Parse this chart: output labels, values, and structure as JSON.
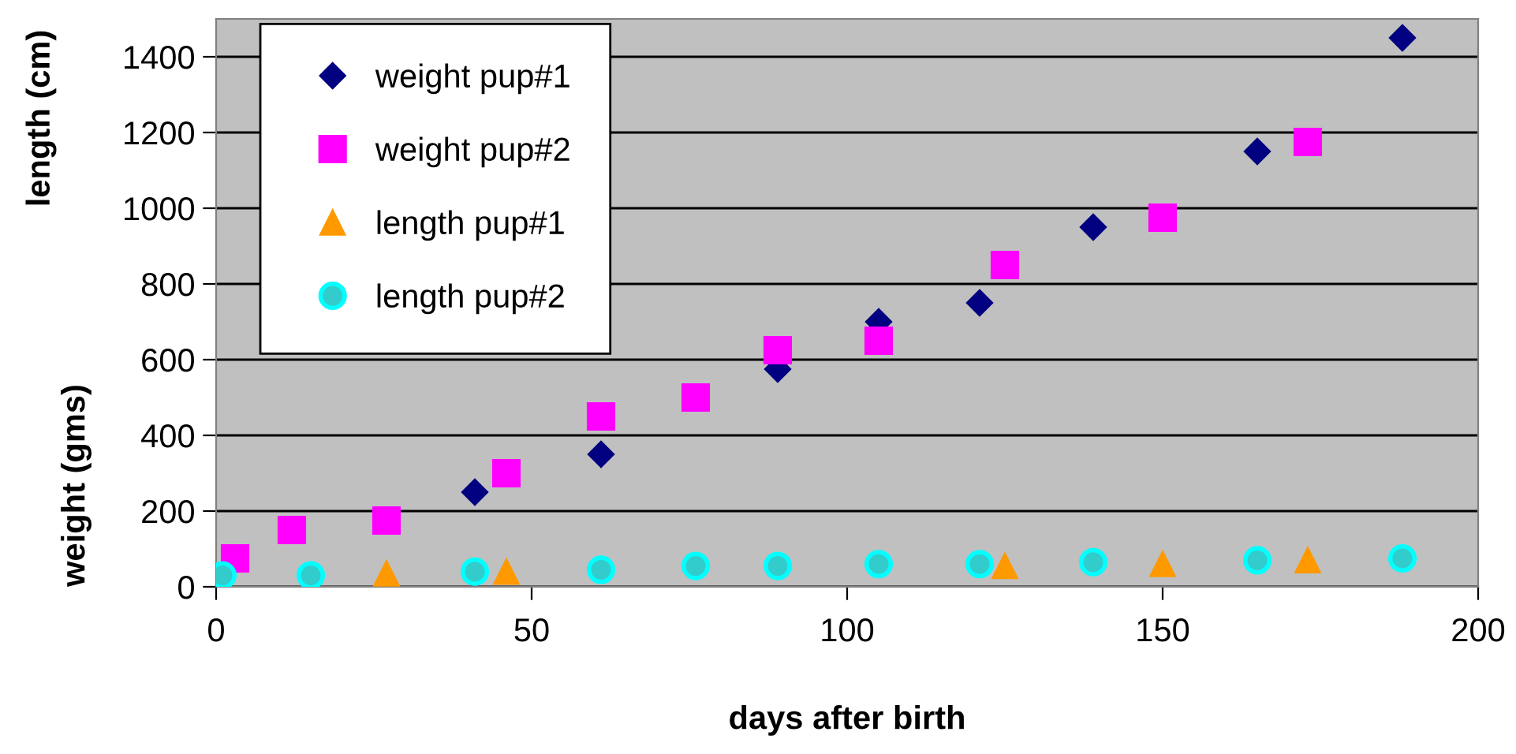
{
  "chart_data": {
    "type": "scatter",
    "xlabel": "days after birth",
    "ylabel": "weight (gms)",
    "annotations": [
      "length (cm)"
    ],
    "xlim": [
      0,
      200
    ],
    "xticks": [
      0,
      50,
      100,
      150,
      200
    ],
    "ylim": [
      0,
      1500
    ],
    "yticks": [
      0,
      200,
      400,
      600,
      800,
      1000,
      1200,
      1400
    ],
    "grid": "y",
    "legend": "top left",
    "series": [
      {
        "name": "weight pup#1",
        "color": "#000080",
        "marker": "diamond",
        "x": [
          41,
          61,
          89,
          105,
          121,
          139,
          165,
          188
        ],
        "values": [
          250,
          350,
          575,
          700,
          750,
          950,
          1150,
          1450
        ]
      },
      {
        "name": "weight pup#2",
        "color": "#ff00ff",
        "marker": "square",
        "x": [
          3,
          12,
          27,
          46,
          61,
          76,
          89,
          105,
          125,
          150,
          173
        ],
        "values": [
          75,
          150,
          175,
          300,
          450,
          500,
          625,
          650,
          850,
          975,
          1175
        ]
      },
      {
        "name": "length pup#1",
        "color": "#ff9900",
        "marker": "triangle",
        "x": [
          27,
          46,
          76,
          89,
          105,
          125,
          150,
          173
        ],
        "values": [
          35,
          40,
          null,
          null,
          null,
          55,
          60,
          70
        ]
      },
      {
        "name": "length pup#2",
        "color": "#33cccc",
        "marker": "circle",
        "x": [
          1,
          15,
          41,
          61,
          76,
          89,
          105,
          121,
          139,
          165,
          188
        ],
        "values": [
          30,
          30,
          40,
          45,
          55,
          55,
          60,
          60,
          65,
          70,
          75
        ]
      }
    ]
  }
}
